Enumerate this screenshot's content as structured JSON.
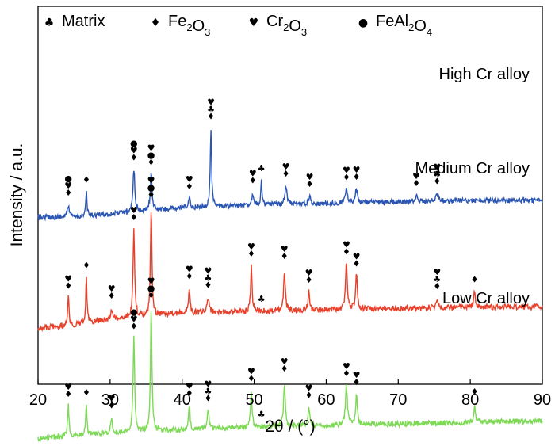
{
  "chart_data": {
    "type": "line",
    "xlabel": "2θ / (°)",
    "ylabel": "Intensity / a.u.",
    "xlim": [
      20,
      90
    ],
    "x_ticks": [
      "20",
      "30",
      "40",
      "50",
      "60",
      "70",
      "80",
      "90"
    ],
    "legend": {
      "placement": "top",
      "entries": [
        {
          "symbol": "club",
          "glyph": "♣",
          "label": "Matrix",
          "parts": [
            [
              "Matrix",
              ""
            ]
          ]
        },
        {
          "symbol": "diamond",
          "glyph": "♦",
          "label": "Fe2O3",
          "parts": [
            [
              "Fe",
              "2"
            ],
            [
              "O",
              "3"
            ]
          ]
        },
        {
          "symbol": "heart",
          "glyph": "♥",
          "label": "Cr2O3",
          "parts": [
            [
              "Cr",
              "2"
            ],
            [
              "O",
              "3"
            ]
          ]
        },
        {
          "symbol": "dot",
          "glyph": "●",
          "label": "FeAl2O4",
          "parts": [
            [
              "FeAl",
              "2"
            ],
            [
              "O",
              "4"
            ]
          ]
        }
      ]
    },
    "series": [
      {
        "name": "High Cr alloy",
        "color": "#2b55b3",
        "baseline": [
          [
            20,
            0.2
          ],
          [
            25,
            0.2
          ],
          [
            30,
            0.22
          ],
          [
            40,
            0.26
          ],
          [
            50,
            0.28
          ],
          [
            60,
            0.29
          ],
          [
            70,
            0.3
          ],
          [
            80,
            0.31
          ],
          [
            90,
            0.31
          ]
        ],
        "peaks": [
          {
            "x": 24.2,
            "h": 0.08,
            "w": 0.15,
            "symbols": [
              "dot",
              "heart",
              "diamond"
            ]
          },
          {
            "x": 26.7,
            "h": 0.16,
            "w": 0.1,
            "symbols": [
              "diamond"
            ]
          },
          {
            "x": 33.3,
            "h": 0.28,
            "w": 0.16,
            "symbols": [
              "dot",
              "heart",
              "diamond"
            ]
          },
          {
            "x": 35.7,
            "h": 0.24,
            "w": 0.15,
            "symbols": [
              "heart",
              "dot",
              "diamond"
            ]
          },
          {
            "x": 41.0,
            "h": 0.06,
            "w": 0.15,
            "symbols": [
              "heart",
              "diamond"
            ]
          },
          {
            "x": 44.0,
            "h": 0.52,
            "w": 0.11,
            "symbols": [
              "heart",
              "club",
              "diamond"
            ]
          },
          {
            "x": 49.8,
            "h": 0.08,
            "w": 0.16,
            "symbols": [
              "heart",
              "diamond"
            ]
          },
          {
            "x": 51.0,
            "h": 0.16,
            "w": 0.09,
            "symbols": [
              "club"
            ]
          },
          {
            "x": 54.4,
            "h": 0.12,
            "w": 0.18,
            "symbols": [
              "heart",
              "diamond"
            ]
          },
          {
            "x": 57.7,
            "h": 0.05,
            "w": 0.15,
            "symbols": [
              "heart",
              "diamond"
            ]
          },
          {
            "x": 62.8,
            "h": 0.09,
            "w": 0.2,
            "symbols": [
              "heart",
              "diamond"
            ]
          },
          {
            "x": 64.2,
            "h": 0.09,
            "w": 0.18,
            "symbols": [
              "heart",
              "diamond"
            ]
          },
          {
            "x": 72.5,
            "h": 0.04,
            "w": 0.18,
            "symbols": [
              "heart",
              "diamond"
            ]
          },
          {
            "x": 75.4,
            "h": 0.05,
            "w": 0.2,
            "symbols": [
              "heart",
              "club",
              "diamond"
            ]
          }
        ]
      },
      {
        "name": "Medium Cr alloy",
        "color": "#e8402a",
        "baseline": [
          [
            20,
            0.2
          ],
          [
            25,
            0.22
          ],
          [
            30,
            0.26
          ],
          [
            40,
            0.3
          ],
          [
            50,
            0.31
          ],
          [
            60,
            0.32
          ],
          [
            70,
            0.33
          ],
          [
            80,
            0.34
          ],
          [
            90,
            0.34
          ]
        ],
        "peaks": [
          {
            "x": 24.2,
            "h": 0.18,
            "w": 0.12,
            "symbols": [
              "heart",
              "diamond"
            ]
          },
          {
            "x": 26.7,
            "h": 0.3,
            "w": 0.1,
            "symbols": [
              "diamond"
            ]
          },
          {
            "x": 30.2,
            "h": 0.07,
            "w": 0.12,
            "symbols": [
              "heart",
              "diamond"
            ]
          },
          {
            "x": 33.3,
            "h": 0.58,
            "w": 0.13,
            "symbols": [
              "heart",
              "diamond"
            ]
          },
          {
            "x": 35.7,
            "h": 0.72,
            "w": 0.12,
            "symbols": [
              "heart",
              "dot",
              "diamond"
            ]
          },
          {
            "x": 41.0,
            "h": 0.16,
            "w": 0.12,
            "symbols": [
              "heart",
              "diamond"
            ]
          },
          {
            "x": 43.6,
            "h": 0.1,
            "w": 0.15,
            "symbols": [
              "heart",
              "club",
              "diamond"
            ]
          },
          {
            "x": 49.6,
            "h": 0.3,
            "w": 0.12,
            "symbols": [
              "heart",
              "diamond"
            ]
          },
          {
            "x": 51.0,
            "h": 0.0,
            "w": 0.1,
            "symbols": [
              "club"
            ]
          },
          {
            "x": 54.2,
            "h": 0.28,
            "w": 0.13,
            "symbols": [
              "heart",
              "diamond"
            ]
          },
          {
            "x": 57.6,
            "h": 0.12,
            "w": 0.14,
            "symbols": [
              "heart",
              "diamond"
            ]
          },
          {
            "x": 62.8,
            "h": 0.3,
            "w": 0.16,
            "symbols": [
              "heart",
              "diamond"
            ]
          },
          {
            "x": 64.2,
            "h": 0.22,
            "w": 0.14,
            "symbols": [
              "heart",
              "diamond"
            ]
          },
          {
            "x": 75.4,
            "h": 0.06,
            "w": 0.18,
            "symbols": [
              "heart",
              "club",
              "diamond"
            ]
          },
          {
            "x": 80.6,
            "h": 0.1,
            "w": 0.12,
            "symbols": [
              "diamond"
            ]
          }
        ]
      },
      {
        "name": "Low Cr alloy",
        "color": "#7ed957",
        "baseline": [
          [
            20,
            0.2
          ],
          [
            25,
            0.22
          ],
          [
            30,
            0.24
          ],
          [
            40,
            0.26
          ],
          [
            50,
            0.28
          ],
          [
            60,
            0.29
          ],
          [
            70,
            0.3
          ],
          [
            80,
            0.31
          ],
          [
            90,
            0.32
          ]
        ],
        "peaks": [
          {
            "x": 24.2,
            "h": 0.2,
            "w": 0.12,
            "symbols": [
              "heart",
              "diamond"
            ]
          },
          {
            "x": 26.7,
            "h": 0.2,
            "w": 0.1,
            "symbols": [
              "diamond"
            ]
          },
          {
            "x": 30.2,
            "h": 0.1,
            "w": 0.12,
            "symbols": [
              "heart",
              "diamond"
            ]
          },
          {
            "x": 33.3,
            "h": 0.62,
            "w": 0.13,
            "symbols": [
              "dot",
              "heart",
              "diamond"
            ]
          },
          {
            "x": 35.7,
            "h": 0.82,
            "w": 0.12,
            "symbols": [
              "heart",
              "dot",
              "diamond"
            ]
          },
          {
            "x": 41.0,
            "h": 0.16,
            "w": 0.12,
            "symbols": [
              "heart",
              "diamond"
            ]
          },
          {
            "x": 43.6,
            "h": 0.12,
            "w": 0.15,
            "symbols": [
              "heart",
              "club",
              "diamond"
            ]
          },
          {
            "x": 49.6,
            "h": 0.24,
            "w": 0.12,
            "symbols": [
              "heart",
              "diamond"
            ]
          },
          {
            "x": 51.0,
            "h": 0.0,
            "w": 0.1,
            "symbols": [
              "club"
            ]
          },
          {
            "x": 54.2,
            "h": 0.3,
            "w": 0.13,
            "symbols": [
              "heart",
              "diamond"
            ]
          },
          {
            "x": 57.6,
            "h": 0.12,
            "w": 0.14,
            "symbols": [
              "heart",
              "diamond"
            ]
          },
          {
            "x": 62.8,
            "h": 0.26,
            "w": 0.16,
            "symbols": [
              "heart",
              "diamond"
            ]
          },
          {
            "x": 64.2,
            "h": 0.2,
            "w": 0.14,
            "symbols": [
              "heart",
              "diamond"
            ]
          },
          {
            "x": 80.6,
            "h": 0.12,
            "w": 0.12,
            "symbols": [
              "diamond"
            ]
          }
        ]
      }
    ]
  }
}
